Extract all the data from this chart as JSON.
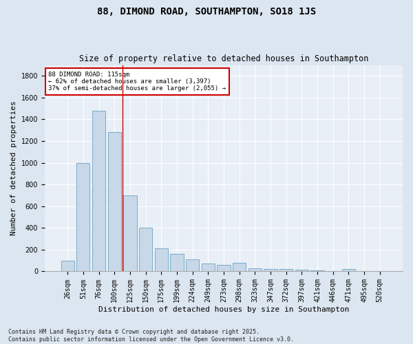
{
  "title": "88, DIMOND ROAD, SOUTHAMPTON, SO18 1JS",
  "subtitle": "Size of property relative to detached houses in Southampton",
  "xlabel": "Distribution of detached houses by size in Southampton",
  "ylabel": "Number of detached properties",
  "categories": [
    "26sqm",
    "51sqm",
    "76sqm",
    "100sqm",
    "125sqm",
    "150sqm",
    "175sqm",
    "199sqm",
    "224sqm",
    "249sqm",
    "273sqm",
    "298sqm",
    "323sqm",
    "347sqm",
    "372sqm",
    "397sqm",
    "421sqm",
    "446sqm",
    "471sqm",
    "495sqm",
    "520sqm"
  ],
  "values": [
    100,
    1000,
    1480,
    1280,
    700,
    400,
    210,
    160,
    110,
    70,
    60,
    80,
    30,
    25,
    20,
    15,
    10,
    5,
    20,
    5,
    5
  ],
  "bar_color": "#c8d8e8",
  "bar_edge_color": "#7aaac8",
  "vline_color": "#cc0000",
  "vline_x_index": 3.5,
  "annotation_text": "88 DIMOND ROAD: 115sqm\n← 62% of detached houses are smaller (3,397)\n37% of semi-detached houses are larger (2,055) →",
  "annotation_box_facecolor": "#ffffff",
  "annotation_box_edgecolor": "#cc0000",
  "ylim": [
    0,
    1900
  ],
  "yticks": [
    0,
    200,
    400,
    600,
    800,
    1000,
    1200,
    1400,
    1600,
    1800
  ],
  "bg_color": "#dce6f0",
  "plot_bg_color": "#e8eff6",
  "grid_color": "#ffffff",
  "footer": "Contains HM Land Registry data © Crown copyright and database right 2025.\nContains public sector information licensed under the Open Government Licence v3.0.",
  "title_fontsize": 10,
  "subtitle_fontsize": 8.5,
  "tick_fontsize": 7,
  "xlabel_fontsize": 8,
  "ylabel_fontsize": 8,
  "footer_fontsize": 6,
  "annotation_fontsize": 6.5
}
